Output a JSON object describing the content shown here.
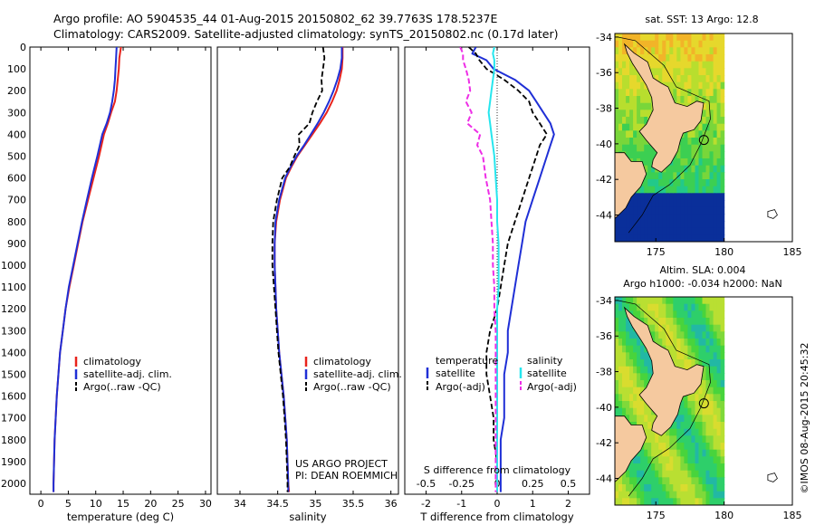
{
  "header": {
    "line1": "Argo profile: AO 5904535_44 01-Aug-2015 20150802_62 39.7763S 178.5237E",
    "line2": "Climatology: CARS2009. Satellite-adjusted climatology: synTS_20150802.nc (0.17d later)"
  },
  "colors": {
    "climatology": "#e8231c",
    "satellite": "#1f2fd6",
    "argo": "#000000",
    "sal_satellite": "#26e6ee",
    "sal_argo": "#ee2ee6",
    "land": "#f5c99f",
    "deep_ocean": "#0a2f9a",
    "no_data": "#ffffff"
  },
  "depth_axis": {
    "range": [
      0,
      2050
    ],
    "ticks": [
      0,
      100,
      200,
      300,
      400,
      500,
      600,
      700,
      800,
      900,
      1000,
      1100,
      1200,
      1300,
      1400,
      1500,
      1600,
      1700,
      1800,
      1900,
      2000
    ]
  },
  "labels": {
    "project_line1": "US ARGO PROJECT",
    "project_line2": "PI: DEAN ROEMMICH",
    "credit": "©IMOS 08-Aug-2015 20:45:32"
  },
  "chart_data": [
    {
      "id": "temperature",
      "type": "line",
      "xlabel": "temperature (deg C)",
      "xlim": [
        -2,
        31
      ],
      "xticks": [
        0,
        5,
        10,
        15,
        20,
        25,
        30
      ],
      "legend": [
        "climatology",
        "satellite-adj. clim.",
        "Argo(..raw -QC)"
      ],
      "depth": [
        0,
        50,
        100,
        150,
        200,
        250,
        300,
        350,
        400,
        500,
        600,
        700,
        800,
        900,
        1000,
        1100,
        1200,
        1300,
        1400,
        1500,
        1600,
        1700,
        1800,
        1900,
        2000,
        2040
      ],
      "series": [
        {
          "name": "climatology",
          "values": [
            14.6,
            14.3,
            14.2,
            14.0,
            13.8,
            13.5,
            12.8,
            12.2,
            11.5,
            10.6,
            9.6,
            8.6,
            7.6,
            6.8,
            6.0,
            5.2,
            4.5,
            4.0,
            3.5,
            3.2,
            2.9,
            2.7,
            2.5,
            2.4,
            2.3,
            2.3
          ]
        },
        {
          "name": "satellite-adj. clim.",
          "values": [
            13.8,
            13.7,
            13.6,
            13.5,
            13.3,
            13.0,
            12.6,
            12.0,
            11.2,
            10.3,
            9.3,
            8.4,
            7.5,
            6.7,
            5.9,
            5.1,
            4.5,
            4.0,
            3.5,
            3.2,
            2.9,
            2.7,
            2.5,
            2.4,
            2.3,
            2.3
          ]
        }
      ]
    },
    {
      "id": "salinity",
      "type": "line",
      "xlabel": "salinity",
      "xlim": [
        33.7,
        36.1
      ],
      "xticks": [
        34,
        34.5,
        35,
        35.5,
        36
      ],
      "xtick_labels": [
        "34",
        "34.5",
        "35",
        "35.5",
        "36"
      ],
      "legend": [
        "climatology",
        "satellite-adj. clim.",
        "Argo(..raw -QC)"
      ],
      "depth": [
        0,
        50,
        100,
        150,
        200,
        250,
        300,
        350,
        400,
        450,
        500,
        550,
        600,
        700,
        800,
        900,
        1000,
        1100,
        1200,
        1300,
        1400,
        1500,
        1600,
        1700,
        1800,
        1900,
        2000,
        2040
      ],
      "series": [
        {
          "name": "climatology",
          "values": [
            35.36,
            35.36,
            35.35,
            35.32,
            35.28,
            35.22,
            35.15,
            35.06,
            34.96,
            34.86,
            34.76,
            34.68,
            34.61,
            34.53,
            34.48,
            34.46,
            34.46,
            34.47,
            34.48,
            34.5,
            34.52,
            34.55,
            34.58,
            34.6,
            34.62,
            34.63,
            34.64,
            34.65
          ]
        },
        {
          "name": "satellite-adj. clim.",
          "values": [
            35.35,
            35.35,
            35.33,
            35.29,
            35.24,
            35.18,
            35.11,
            35.03,
            34.94,
            34.85,
            34.75,
            34.67,
            34.6,
            34.52,
            34.47,
            34.46,
            34.46,
            34.47,
            34.48,
            34.5,
            34.52,
            34.55,
            34.58,
            34.6,
            34.62,
            34.63,
            34.64,
            34.64
          ]
        },
        {
          "name": "Argo(..raw -QC)",
          "values": [
            35.1,
            35.12,
            35.1,
            35.08,
            35.09,
            35.02,
            34.96,
            34.92,
            34.78,
            34.79,
            34.72,
            34.66,
            34.56,
            34.49,
            34.44,
            34.43,
            34.43,
            34.45,
            34.47,
            34.49,
            34.51,
            34.54,
            34.57,
            34.59,
            34.61,
            34.62,
            34.63,
            34.63
          ]
        }
      ]
    },
    {
      "id": "differences",
      "type": "line",
      "xlabel": "T difference from climatology",
      "xlim": [
        -2.6,
        2.6
      ],
      "xticks": [
        -2,
        -1,
        0,
        1,
        2
      ],
      "s_label": "S difference from climatology",
      "s_xlim": [
        -0.65,
        0.65
      ],
      "s_xticks": [
        -0.5,
        -0.25,
        0,
        0.25,
        0.5
      ],
      "s_xtick_labels": [
        "-0.5",
        "-0.25",
        "0",
        "0.25",
        "0.5"
      ],
      "legend_temperature_title": "temperature",
      "legend_salinity_title": "salinity",
      "legend": [
        "satellite",
        "Argo(-adj)",
        "satellite",
        "Argo(-adj)"
      ],
      "depth": [
        0,
        30,
        60,
        100,
        150,
        200,
        250,
        300,
        350,
        400,
        450,
        500,
        600,
        700,
        800,
        900,
        1000,
        1100,
        1200,
        1300,
        1400,
        1500,
        1600,
        1700,
        1800,
        1900,
        2000,
        2040
      ],
      "series": [
        {
          "name": "T satellite",
          "values": [
            -0.6,
            -0.7,
            -0.3,
            -0.1,
            0.5,
            0.9,
            1.1,
            1.3,
            1.5,
            1.6,
            1.5,
            1.4,
            1.2,
            1.0,
            0.8,
            0.7,
            0.6,
            0.5,
            0.4,
            0.3,
            0.3,
            0.2,
            0.2,
            0.2,
            0.1,
            0.1,
            0.1,
            0.1
          ]
        },
        {
          "name": "T Argo(-adj)",
          "values": [
            -0.8,
            -0.6,
            -0.5,
            -0.3,
            0.2,
            0.6,
            0.9,
            1.0,
            1.2,
            1.4,
            1.2,
            1.1,
            0.9,
            0.7,
            0.5,
            0.3,
            0.2,
            0.1,
            0.0,
            -0.2,
            -0.3,
            -0.3,
            -0.2,
            -0.1,
            -0.1,
            0.0,
            0.0,
            0.0
          ]
        },
        {
          "name": "S satellite",
          "values": [
            -0.02,
            -0.03,
            -0.02,
            -0.02,
            -0.03,
            -0.04,
            -0.05,
            -0.06,
            -0.05,
            -0.04,
            -0.03,
            -0.02,
            -0.01,
            0.0,
            0.0,
            0.01,
            0.01,
            0.01,
            0.0,
            0.0,
            0.0,
            0.0,
            0.0,
            0.0,
            0.0,
            0.0,
            0.0,
            0.0
          ]
        },
        {
          "name": "S Argo(-adj)",
          "values": [
            -0.26,
            -0.24,
            -0.24,
            -0.22,
            -0.2,
            -0.19,
            -0.22,
            -0.18,
            -0.21,
            -0.12,
            -0.14,
            -0.1,
            -0.08,
            -0.05,
            -0.04,
            -0.03,
            -0.03,
            -0.02,
            -0.02,
            -0.01,
            -0.01,
            -0.01,
            -0.01,
            -0.01,
            -0.01,
            -0.01,
            -0.01,
            -0.01
          ]
        }
      ]
    },
    {
      "id": "sst_map",
      "type": "heatmap",
      "title": "sat. SST: 13 Argo: 12.8",
      "xticks": [
        175,
        180,
        185
      ],
      "yticks": [
        -34,
        -36,
        -38,
        -40,
        -42,
        -44
      ],
      "xlim": [
        172,
        185
      ],
      "ylim": [
        -45.5,
        -33.8
      ],
      "float_position": [
        178.52,
        -39.78
      ]
    },
    {
      "id": "sla_map",
      "type": "heatmap",
      "title_line1": "Altim. SLA: 0.004",
      "title_line2": "Argo h1000: -0.034 h2000: NaN",
      "xticks": [
        175,
        180,
        185
      ],
      "yticks": [
        -34,
        -36,
        -38,
        -40,
        -42,
        -44
      ],
      "xlim": [
        172,
        185
      ],
      "ylim": [
        -45.5,
        -33.8
      ],
      "float_position": [
        178.52,
        -39.78
      ]
    }
  ]
}
